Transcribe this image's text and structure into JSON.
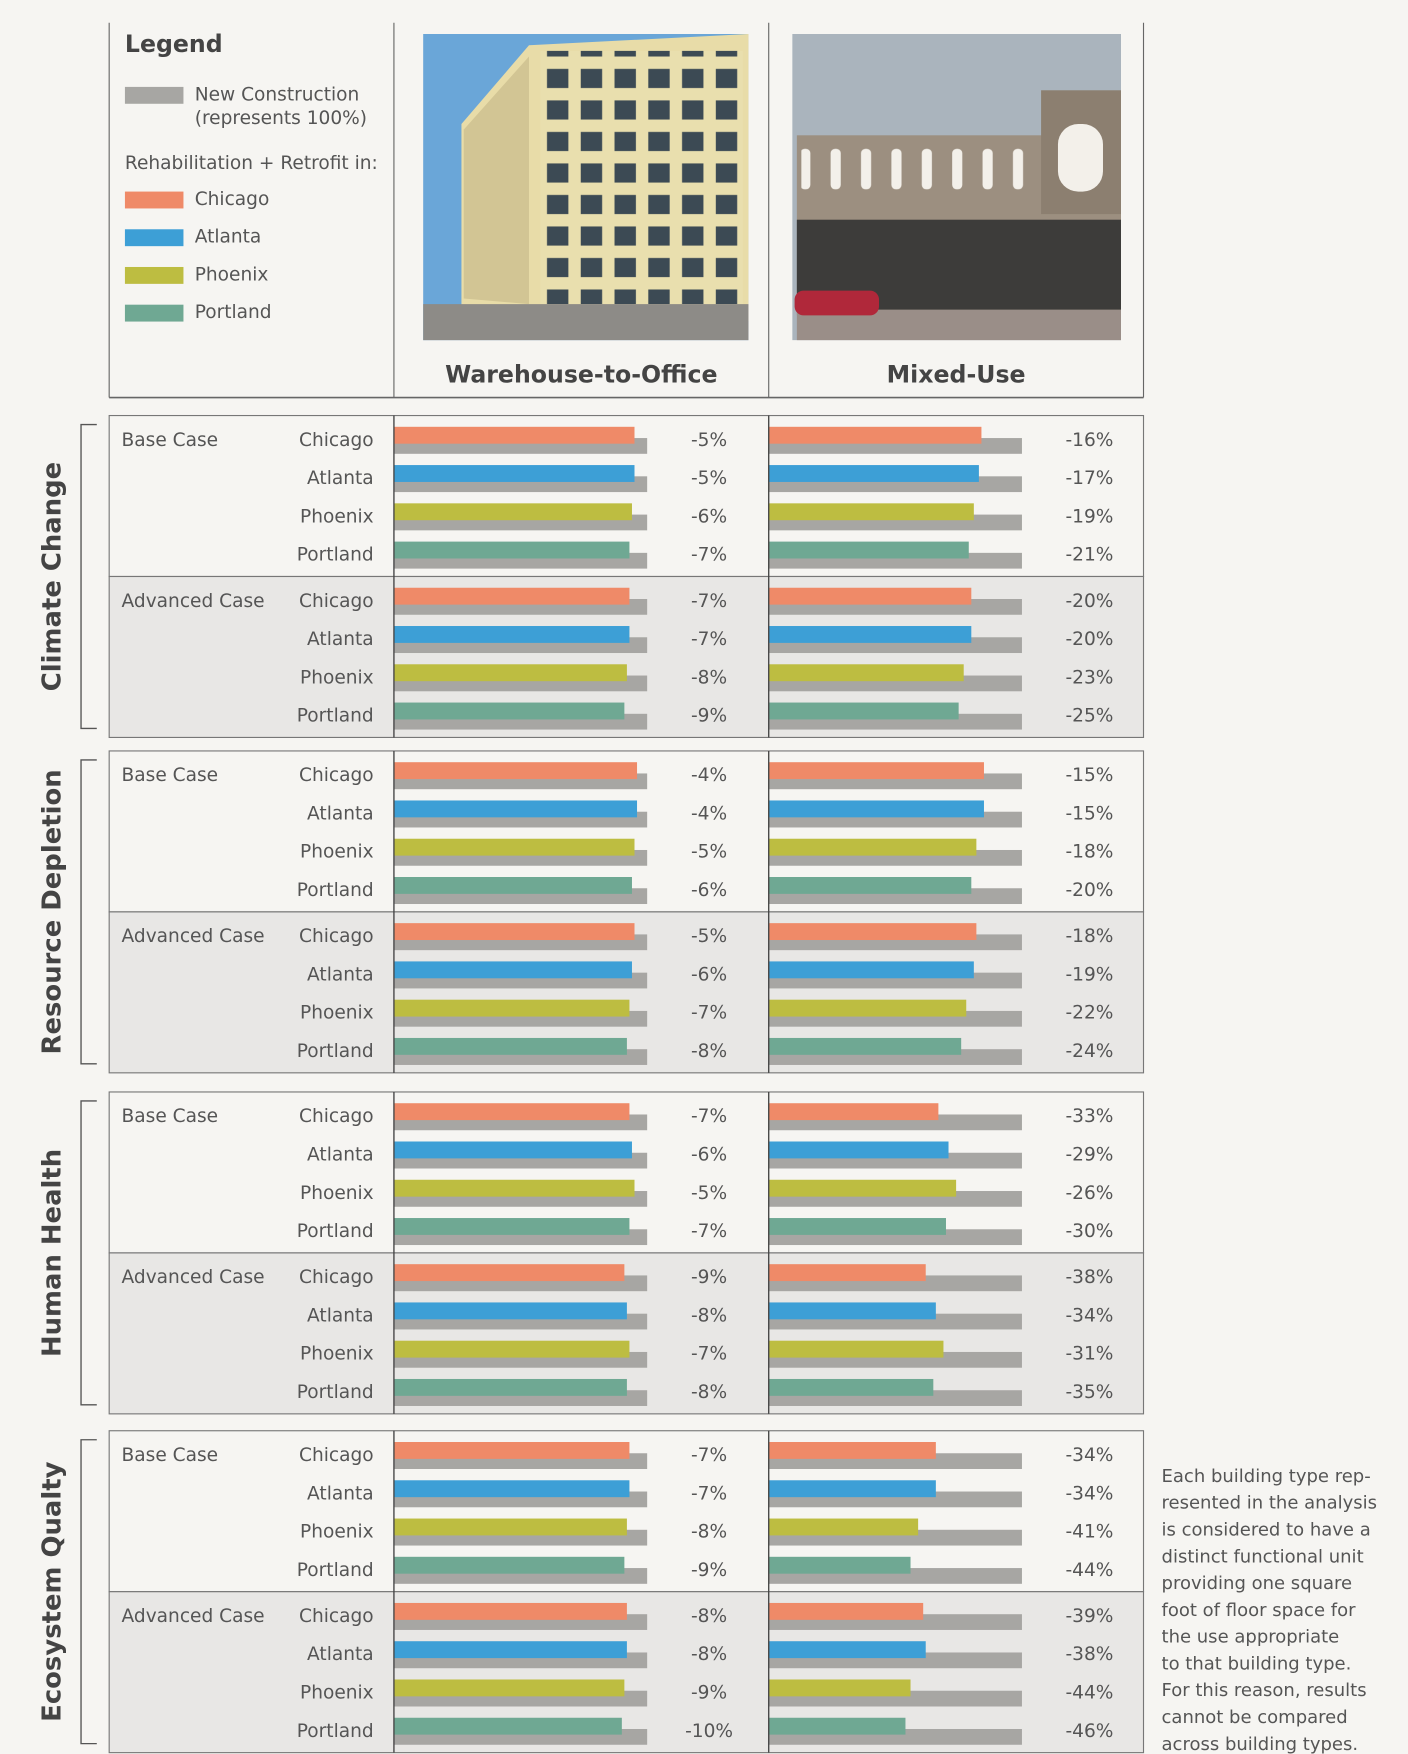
{
  "chart_data": {
    "type": "bar",
    "legend": {
      "title": "Legend",
      "reference_label": [
        "New Construction",
        "(represents 100%)"
      ],
      "series_heading": "Rehabilitation + Retrofit in:"
    },
    "reference": {
      "value": 100,
      "color": "#a7a6a3"
    },
    "xlim": [
      0,
      100
    ],
    "series": [
      {
        "name": "Chicago",
        "color": "#ef8a68"
      },
      {
        "name": "Atlanta",
        "color": "#3d9fd6"
      },
      {
        "name": "Phoenix",
        "color": "#bdbd41"
      },
      {
        "name": "Portland",
        "color": "#6fa893"
      }
    ],
    "building_types": [
      "Warehouse-to-Office",
      "Mixed-Use"
    ],
    "panels": [
      {
        "title": "Climate Change",
        "cases": [
          {
            "name": "Base Case",
            "values": [
              [
                -5,
                -5,
                -6,
                -7
              ],
              [
                -16,
                -17,
                -19,
                -21
              ]
            ],
            "value_labels": [
              [
                "-5%",
                "-5%",
                "-6%",
                "-7%"
              ],
              [
                "-16%",
                "-17%",
                "-19%",
                "-21%"
              ]
            ]
          },
          {
            "name": "Advanced Case",
            "values": [
              [
                -7,
                -7,
                -8,
                -9
              ],
              [
                -20,
                -20,
                -23,
                -25
              ]
            ],
            "value_labels": [
              [
                "-7%",
                "-7%",
                "-8%",
                "-9%"
              ],
              [
                "-20%",
                "-20%",
                "-23%",
                "-25%"
              ]
            ]
          }
        ]
      },
      {
        "title": "Resource Depletion",
        "cases": [
          {
            "name": "Base Case",
            "values": [
              [
                -4,
                -4,
                -5,
                -6
              ],
              [
                -15,
                -15,
                -18,
                -20
              ]
            ],
            "value_labels": [
              [
                "-4%",
                "-4%",
                "-5%",
                "-6%"
              ],
              [
                "-15%",
                "-15%",
                "-18%",
                "-20%"
              ]
            ]
          },
          {
            "name": "Advanced Case",
            "values": [
              [
                -5,
                -6,
                -7,
                -8
              ],
              [
                -18,
                -19,
                -22,
                -24
              ]
            ],
            "value_labels": [
              [
                "-5%",
                "-6%",
                "-7%",
                "-8%"
              ],
              [
                "-18%",
                "-19%",
                "-22%",
                "-24%"
              ]
            ]
          }
        ]
      },
      {
        "title": "Human Health",
        "cases": [
          {
            "name": "Base Case",
            "values": [
              [
                -7,
                -6,
                -5,
                -7
              ],
              [
                -33,
                -29,
                -26,
                -30
              ]
            ],
            "value_labels": [
              [
                "-7%",
                "-6%",
                "-5%",
                "-7%"
              ],
              [
                "-33%",
                "-29%",
                "-26%",
                "-30%"
              ]
            ]
          },
          {
            "name": "Advanced Case",
            "values": [
              [
                -9,
                -8,
                -7,
                -8
              ],
              [
                -38,
                -34,
                -31,
                -35
              ]
            ],
            "value_labels": [
              [
                "-9%",
                "-8%",
                "-7%",
                "-8%"
              ],
              [
                "-38%",
                "-34%",
                "-31%",
                "-35%"
              ]
            ]
          }
        ]
      },
      {
        "title": "Ecosystem Qualty",
        "cases": [
          {
            "name": "Base Case",
            "values": [
              [
                -7,
                -7,
                -8,
                -9
              ],
              [
                -34,
                -34,
                -41,
                -44
              ]
            ],
            "value_labels": [
              [
                "-7%",
                "-7%",
                "-8%",
                "-9%"
              ],
              [
                "-34%",
                "-34%",
                "-41%",
                "-44%"
              ]
            ]
          },
          {
            "name": "Advanced Case",
            "values": [
              [
                -8,
                -8,
                -9,
                -10
              ],
              [
                -39,
                -38,
                -44,
                -46
              ]
            ],
            "value_labels": [
              [
                "-8%",
                "-8%",
                "-9%",
                "-10%"
              ],
              [
                "-39%",
                "-38%",
                "-44%",
                "-46%"
              ]
            ]
          }
        ]
      }
    ],
    "note": [
      "Each building type rep-",
      "resented in the analysis",
      "is considered to have a",
      "distinct functional unit",
      "providing one square",
      "foot of floor space for",
      "the use appropriate",
      "to that building type.",
      "For this reason, results",
      "cannot be compared",
      "across building types."
    ]
  }
}
